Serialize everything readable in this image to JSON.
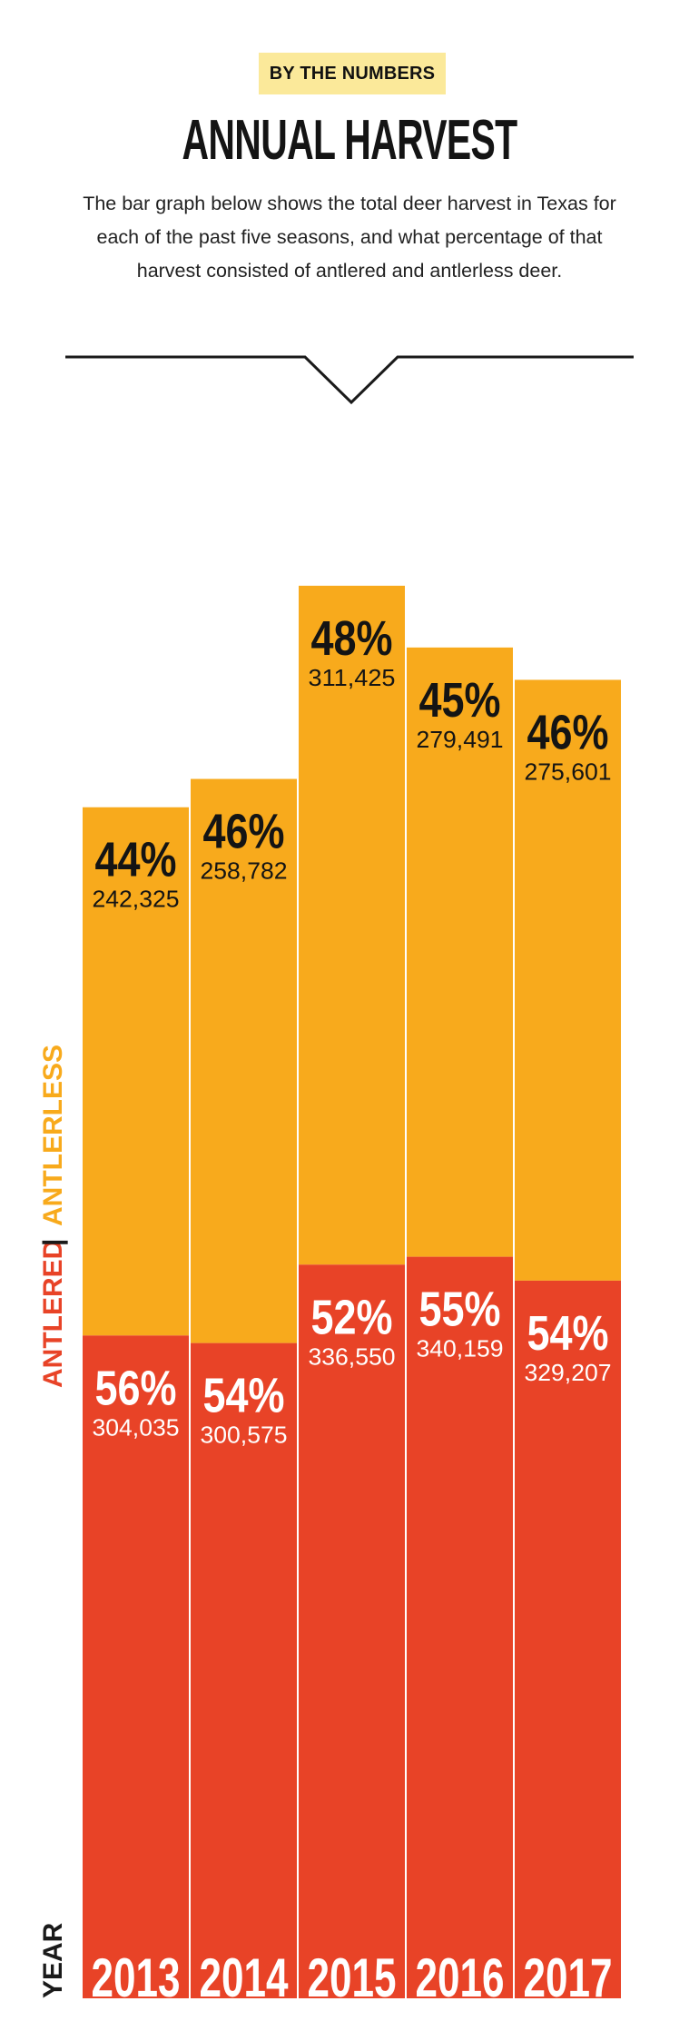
{
  "header": {
    "badge": "BY THE NUMBERS",
    "title": "ANNUAL HARVEST",
    "description": "The bar graph below shows the total deer harvest in Texas for each of the past five seasons, and what percentage of that harvest consisted of antlered and antlerless deer."
  },
  "side_labels": {
    "antlered": "ANTLERED",
    "separator": "|",
    "antlerless": "ANTLERLESS",
    "year": "YEAR"
  },
  "colors": {
    "antlerless": "#f8aa1c",
    "antlered": "#e84327",
    "badge_bg": "#fbe99a",
    "text_dark": "#141414"
  },
  "chart_data": {
    "type": "bar",
    "stacked": true,
    "categories": [
      "2013",
      "2014",
      "2015",
      "2016",
      "2017"
    ],
    "series": [
      {
        "name": "ANTLERED",
        "values": [
          304035,
          300575,
          336550,
          340159,
          329207
        ],
        "value_labels": [
          "304,035",
          "300,575",
          "336,550",
          "340,159",
          "329,207"
        ],
        "percent_labels": [
          "56%",
          "54%",
          "52%",
          "55%",
          "54%"
        ]
      },
      {
        "name": "ANTLERLESS",
        "values": [
          242325,
          258782,
          311425,
          279491,
          275601
        ],
        "value_labels": [
          "242,325",
          "258,782",
          "311,425",
          "279,491",
          "275,601"
        ],
        "percent_labels": [
          "44%",
          "46%",
          "48%",
          "45%",
          "46%"
        ]
      }
    ],
    "xlabel": "YEAR",
    "ylabel": "",
    "title": "ANNUAL HARVEST",
    "grid": false
  }
}
